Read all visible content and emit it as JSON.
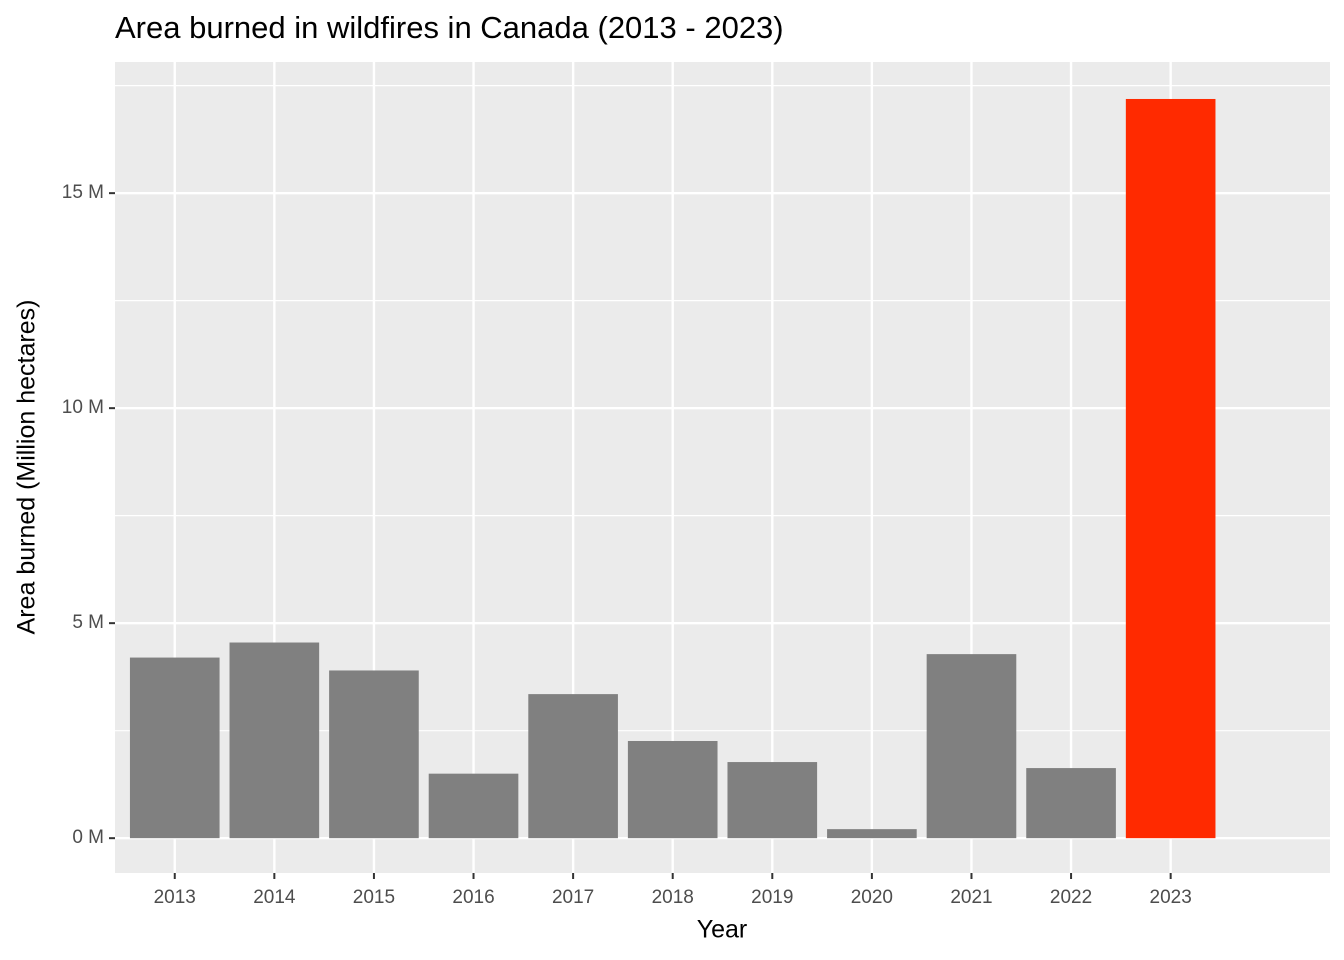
{
  "chart_data": {
    "type": "bar",
    "title": "Area burned in wildfires in Canada (2013 - 2023)",
    "x_label": "Year",
    "y_label": "Area burned (Million hectares)",
    "categories": [
      "2013",
      "2014",
      "2015",
      "2016",
      "2017",
      "2018",
      "2019",
      "2020",
      "2021",
      "2022",
      "2023"
    ],
    "values": [
      4.2,
      4.55,
      3.9,
      1.5,
      3.35,
      2.26,
      1.77,
      0.21,
      4.28,
      1.63,
      17.19
    ],
    "colors": [
      "#808080",
      "#808080",
      "#808080",
      "#808080",
      "#808080",
      "#808080",
      "#808080",
      "#808080",
      "#808080",
      "#808080",
      "#ff2a00"
    ],
    "ylim": [
      -0.81,
      18.05
    ],
    "yticks": [
      {
        "value": 0,
        "label": "0 M"
      },
      {
        "value": 5,
        "label": "5 M"
      },
      {
        "value": 10,
        "label": "10 M"
      },
      {
        "value": 15,
        "label": "15 M"
      }
    ],
    "minor_yticks": [
      2.5,
      7.5,
      12.5,
      17.5
    ],
    "grid": true,
    "panel_color": "#ebebeb"
  }
}
